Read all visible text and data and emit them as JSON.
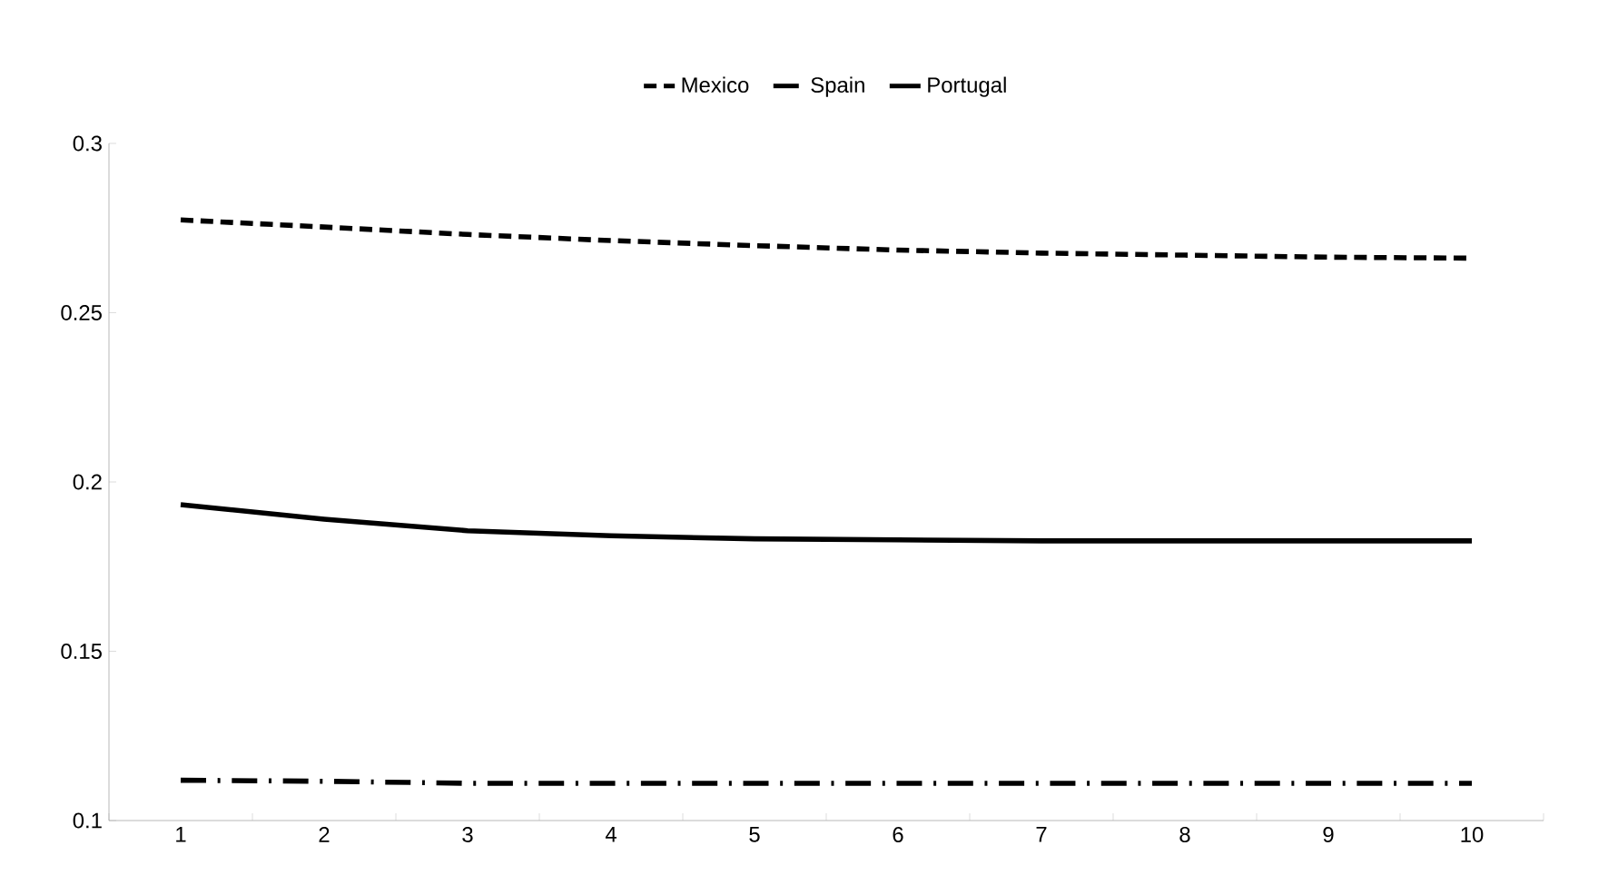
{
  "chart_data": {
    "type": "line",
    "categories": [
      "1",
      "2",
      "3",
      "4",
      "5",
      "6",
      "7",
      "8",
      "9",
      "10"
    ],
    "ylim": [
      0.1,
      0.3
    ],
    "yticks": [
      0.1,
      0.15,
      0.2,
      0.25,
      0.3
    ],
    "grid": false,
    "legend": "top",
    "marker": "none",
    "series": [
      {
        "name": "Mexico",
        "color": "#000000",
        "line_style": "dashed",
        "values": [
          0.2774,
          0.2753,
          0.2731,
          0.2713,
          0.2698,
          0.2685,
          0.2676,
          0.267,
          0.2664,
          0.2661
        ]
      },
      {
        "name": "Spain",
        "color": "#000000",
        "line_style": "dashdot",
        "values": [
          0.1119,
          0.1116,
          0.111,
          0.111,
          0.111,
          0.111,
          0.111,
          0.111,
          0.111,
          0.111
        ]
      },
      {
        "name": "Portugal",
        "color": "#000000",
        "line_style": "solid",
        "values": [
          0.1933,
          0.189,
          0.1856,
          0.1841,
          0.1832,
          0.1829,
          0.1826,
          0.1826,
          0.1826,
          0.1826
        ]
      }
    ]
  }
}
